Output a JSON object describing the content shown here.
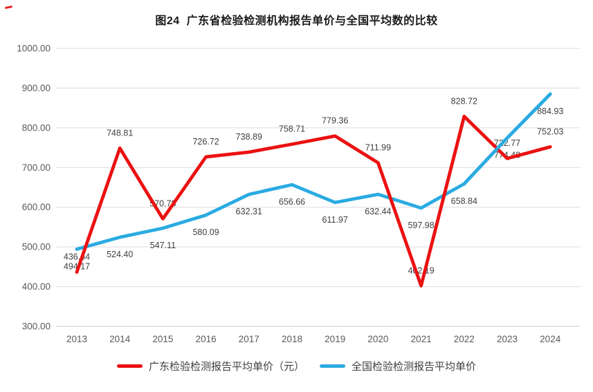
{
  "chart_data": {
    "type": "line",
    "title": "图24  广东省检验检测机构报告单价与全国平均数的比较",
    "categories": [
      "2013",
      "2014",
      "2015",
      "2016",
      "2017",
      "2018",
      "2019",
      "2020",
      "2021",
      "2022",
      "2023",
      "2024"
    ],
    "series": [
      {
        "name": "广东检验检测报告平均单价（元）",
        "color": "#eb1111",
        "label_position": "above",
        "values": [
          436.64,
          748.81,
          570.78,
          726.72,
          738.89,
          758.71,
          779.36,
          711.99,
          402.19,
          828.72,
          722.77,
          752.03
        ]
      },
      {
        "name": "全国检验检测报告平均单价",
        "color": "#2aabe2",
        "label_position": "below",
        "values": [
          494.17,
          524.4,
          547.11,
          580.09,
          632.31,
          656.66,
          611.97,
          632.44,
          597.98,
          658.84,
          774.48,
          884.93
        ]
      }
    ],
    "ylim": [
      300,
      1000
    ],
    "ytick_step": 100,
    "value_label_decimals": 2,
    "grid": true,
    "legend_position": "bottom"
  },
  "colors": {
    "grid_line": "#dcdcdc",
    "axis_line": "#c9c9c9",
    "tick_text": "#595959",
    "data_label_text": "#3f3f3f",
    "title_text": "#1a1a1a"
  }
}
